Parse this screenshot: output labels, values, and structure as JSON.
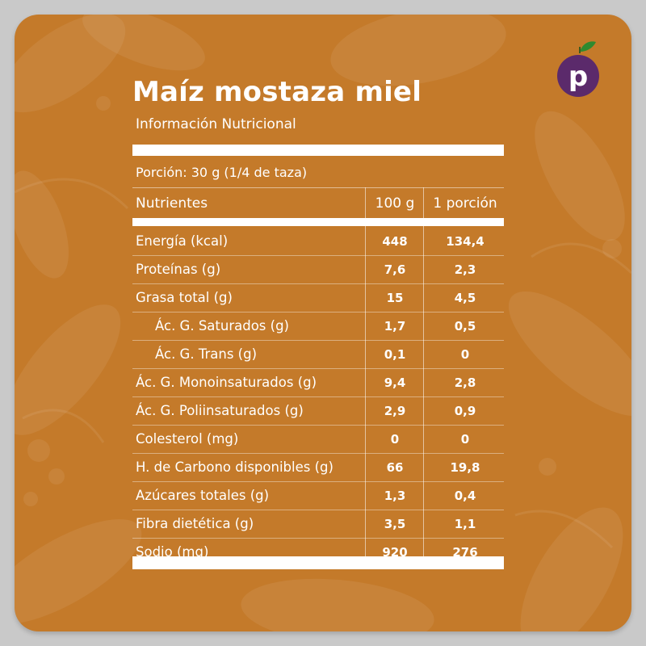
{
  "product": {
    "title": "Maíz mostaza miel",
    "subtitle": "Información Nutricional",
    "portion": "Porción: 30 g (1/4 de taza)"
  },
  "table": {
    "headers": {
      "name": "Nutrientes",
      "per100": "100 g",
      "perPortion": "1 porción"
    },
    "rows": [
      {
        "name": "Energía (kcal)",
        "per100": "448",
        "perPortion": "134,4"
      },
      {
        "name": "Proteínas (g)",
        "per100": "7,6",
        "perPortion": "2,3"
      },
      {
        "name": "Grasa total (g)",
        "per100": "15",
        "perPortion": "4,5"
      },
      {
        "name": "Ác. G. Saturados (g)",
        "per100": "1,7",
        "perPortion": "0,5"
      },
      {
        "name": "Ác. G. Trans (g)",
        "per100": "0,1",
        "perPortion": "0"
      },
      {
        "name": "Ác. G. Monoinsaturados (g)",
        "per100": "9,4",
        "perPortion": "2,8"
      },
      {
        "name": "Ác. G. Poliinsaturados (g)",
        "per100": "2,9",
        "perPortion": "0,9"
      },
      {
        "name": "Colesterol (mg)",
        "per100": "0",
        "perPortion": "0"
      },
      {
        "name": "H. de Carbono disponibles (g)",
        "per100": "66",
        "perPortion": "19,8"
      },
      {
        "name": "Azúcares totales (g)",
        "per100": "1,3",
        "perPortion": "0,4"
      },
      {
        "name": "Fibra dietética (g)",
        "per100": "3,5",
        "perPortion": "1,1"
      },
      {
        "name": "Sodio (mg)",
        "per100": "920",
        "perPortion": "276"
      }
    ]
  },
  "logo": {
    "letter": "p"
  },
  "colors": {
    "background": "#c47a2a",
    "text": "#ffffff",
    "logoPurple": "#5b2a6b",
    "logoLeaf": "#2f8a2f"
  }
}
